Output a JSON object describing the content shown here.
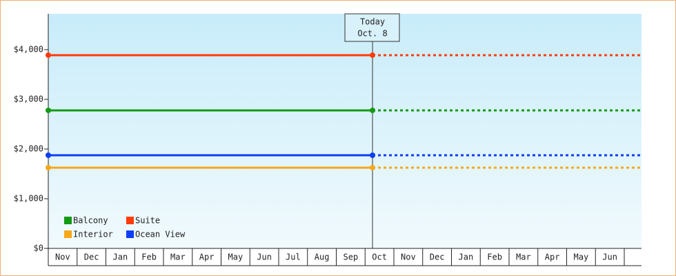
{
  "chart_data": {
    "type": "line",
    "categories": [
      "Nov",
      "Dec",
      "Jan",
      "Feb",
      "Mar",
      "Apr",
      "May",
      "Jun",
      "Jul",
      "Aug",
      "Sep",
      "Oct",
      "Nov",
      "Dec",
      "Jan",
      "Feb",
      "Mar",
      "Apr",
      "May",
      "Jun"
    ],
    "series": [
      {
        "name": "Balcony",
        "color": "#139a13",
        "value": 2778
      },
      {
        "name": "Suite",
        "color": "#ff3b0a",
        "value": 3889
      },
      {
        "name": "Interior",
        "color": "#f5a81a",
        "value": 1625
      },
      {
        "name": "Ocean View",
        "color": "#0b3ef5",
        "value": 1875
      }
    ],
    "annotation": [
      "Today",
      "Oct. 8"
    ],
    "ylim": [
      0,
      4722
    ],
    "yticks": [
      {
        "value": 0,
        "label": "$0"
      },
      {
        "value": 1000,
        "label": "$1,000"
      },
      {
        "value": 2000,
        "label": "$2,000"
      },
      {
        "value": 3000,
        "label": "$3,000"
      },
      {
        "value": 4000,
        "label": "$4,000"
      }
    ],
    "legend": "bottom-left"
  }
}
